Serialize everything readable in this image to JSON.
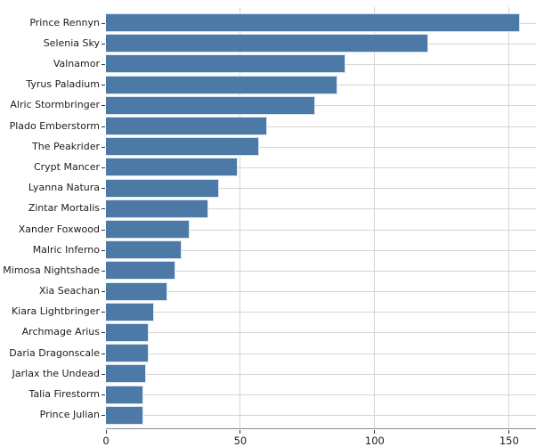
{
  "chart_data": {
    "type": "bar",
    "orientation": "horizontal",
    "title": "",
    "xlabel": "",
    "ylabel": "",
    "categories": [
      "Prince Rennyn",
      "Selenia Sky",
      "Valnamor",
      "Tyrus Paladium",
      "Alric Stormbringer",
      "Plado Emberstorm",
      "The Peakrider",
      "Crypt Mancer",
      "Lyanna Natura",
      "Zintar Mortalis",
      "Xander Foxwood",
      "Malric Inferno",
      "Mimosa Nightshade",
      "Xia Seachan",
      "Kiara Lightbringer",
      "Archmage Arius",
      "Daria Dragonscale",
      "Jarlax the Undead",
      "Talia Firestorm",
      "Prince Julian"
    ],
    "values": [
      154,
      120,
      89,
      86,
      78,
      60,
      57,
      49,
      42,
      38,
      31,
      28,
      26,
      23,
      18,
      16,
      16,
      15,
      14,
      14
    ],
    "xlim": [
      0,
      160
    ],
    "x_ticks": [
      0,
      50,
      100,
      150
    ],
    "grid": true,
    "legend": "none",
    "colors": {
      "bar_fill": "#4d79a7",
      "bar_edge": "#d9e4f0",
      "gridline": "#d4d4d4",
      "spine": "#8a8a8a",
      "tick": "#333333",
      "text": "#1c1c1c",
      "background": "#ffffff"
    }
  }
}
